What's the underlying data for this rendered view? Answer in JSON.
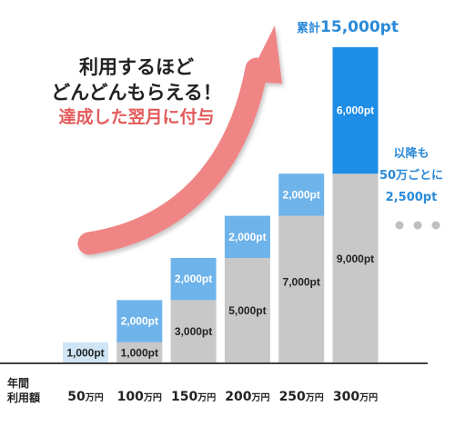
{
  "headline": {
    "line1": "利用するほど",
    "line2": "どんどんもらえる！",
    "line3": "達成した翌月に付与"
  },
  "total": {
    "prefix": "累計",
    "value": "15,000pt"
  },
  "side_note": {
    "line1": "以降も",
    "line2": "50万ごとに",
    "line3": "2,500pt",
    "continuation": "• • •"
  },
  "axis_title": {
    "line1": "年間",
    "line2": "利用額"
  },
  "colors": {
    "accumulated": "#c8c8c8",
    "increment": "#6eb3ea",
    "increment_final": "#1d8de6",
    "first_only": "#cfe5f6",
    "arrow": "#f08585",
    "accent_blue": "#2b8ad8",
    "accent_red": "#e35b5b"
  },
  "chart_data": {
    "type": "bar",
    "stacked": true,
    "categories": [
      {
        "num": "50",
        "unit": "万円"
      },
      {
        "num": "100",
        "unit": "万円"
      },
      {
        "num": "150",
        "unit": "万円"
      },
      {
        "num": "200",
        "unit": "万円"
      },
      {
        "num": "250",
        "unit": "万円"
      },
      {
        "num": "300",
        "unit": "万円"
      }
    ],
    "series": [
      {
        "values": [
          0,
          1000,
          3000,
          5000,
          7000,
          9000
        ],
        "labels": [
          "",
          "1,000pt",
          "3,000pt",
          "5,000pt",
          "7,000pt",
          "9,000pt"
        ]
      },
      {
        "values": [
          1000,
          2000,
          2000,
          2000,
          2000,
          6000
        ],
        "labels": [
          "1,000pt",
          "2,000pt",
          "2,000pt",
          "2,000pt",
          "2,000pt",
          "6,000pt"
        ]
      }
    ],
    "ylim": [
      0,
      15000
    ],
    "grid": false,
    "legend": "none"
  }
}
